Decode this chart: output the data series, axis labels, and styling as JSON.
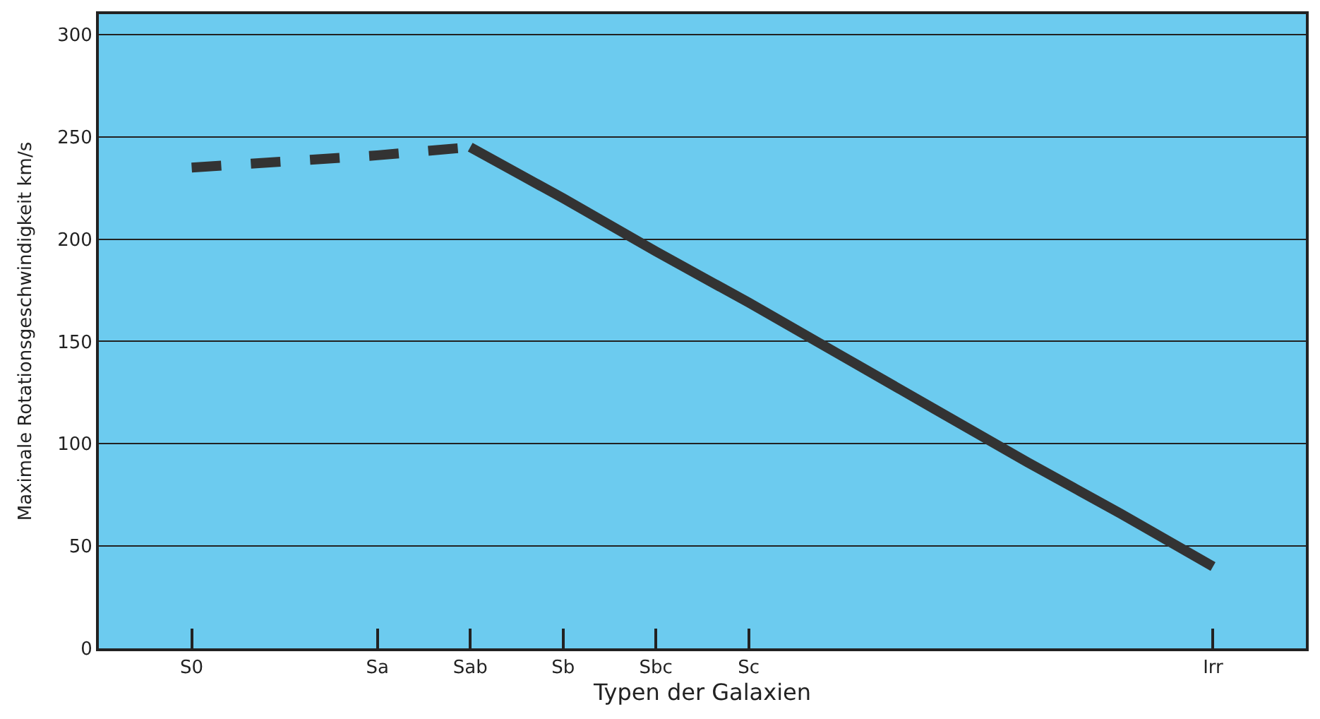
{
  "chart_data": {
    "type": "line",
    "xlabel": "Typen der Galaxien",
    "ylabel": "Maximale Rotationsgeschwindigkeit km/s",
    "categories": [
      "S0",
      null,
      "Sa",
      "Sab",
      "Sb",
      "Sbc",
      "Sc",
      null,
      null,
      null,
      null,
      "Irr"
    ],
    "series": [
      {
        "color": "#333333",
        "line_style": "dashed",
        "values": [
          235,
          238,
          241,
          245,
          null,
          null,
          null,
          null,
          null,
          null,
          null,
          null
        ]
      },
      {
        "color": "#333333",
        "line_style": "solid",
        "values": [
          null,
          null,
          null,
          245,
          220,
          194,
          169,
          143,
          117,
          91,
          66,
          40
        ]
      }
    ],
    "ylim": [
      0,
      310
    ],
    "yticks": [
      0,
      50,
      100,
      150,
      200,
      250,
      300
    ],
    "grid": "y",
    "marker": "none"
  }
}
